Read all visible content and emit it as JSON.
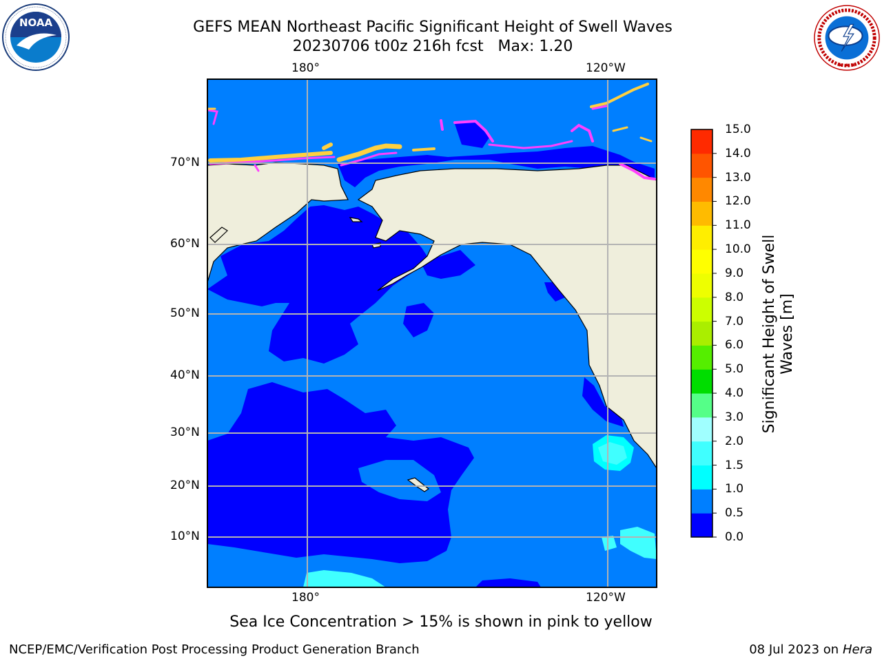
{
  "header": {
    "title_line1": "GEFS MEAN Northeast Pacific Significant Height of Swell Waves",
    "title_line2": "20230706 t00z 216h fcst   Max: 1.20"
  },
  "logos": {
    "left": "NOAA",
    "left_ring_text": "NATIONAL OCEANIC AND ATMOSPHERIC ADMINISTRATION · U.S. DEPARTMENT OF COMMERCE",
    "right_ring_text": "NATIONAL WEATHER SERVICE"
  },
  "map": {
    "top_lon_labels": [
      "180°",
      "120°W"
    ],
    "bottom_lon_labels": [
      "180°",
      "120°W"
    ],
    "lat_labels": [
      "70°N",
      "60°N",
      "50°N",
      "40°N",
      "30°N",
      "20°N",
      "10°N"
    ],
    "colors": {
      "land": "#efeedc",
      "swell_0_0.5": "#0000ff",
      "swell_0.5_1.0": "#007fff",
      "swell_1.0_1.5": "#00ffff",
      "swell_1.5_2.0": "#40ffff",
      "ice_pink": "#ff40ff",
      "ice_yellow": "#ffd040",
      "grid": "#b3b3b3"
    }
  },
  "colorbar": {
    "label_line1": "Significant Height of Swell",
    "label_line2": "Waves [m]",
    "ticks": [
      "0.0",
      "0.5",
      "1.0",
      "1.5",
      "2.0",
      "3.0",
      "4.0",
      "5.0",
      "6.0",
      "7.0",
      "8.0",
      "9.0",
      "10.0",
      "11.0",
      "12.0",
      "13.0",
      "14.0",
      "15.0"
    ],
    "colors": [
      "#0000ff",
      "#007fff",
      "#00ffff",
      "#40ffff",
      "#a0ffff",
      "#55ff88",
      "#00dd00",
      "#55ee00",
      "#aaee00",
      "#ccff00",
      "#eeff00",
      "#ffff00",
      "#ffee00",
      "#ffbb00",
      "#ff8800",
      "#ff5500",
      "#ff2a00",
      "#ff0000"
    ]
  },
  "caption": "Sea Ice Concentration > 15% is shown in pink to yellow",
  "footer": {
    "left": "NCEP/EMC/Verification Post Processing Product Generation Branch",
    "right_date": "08 Jul 2023 on ",
    "right_host": "Hera"
  }
}
